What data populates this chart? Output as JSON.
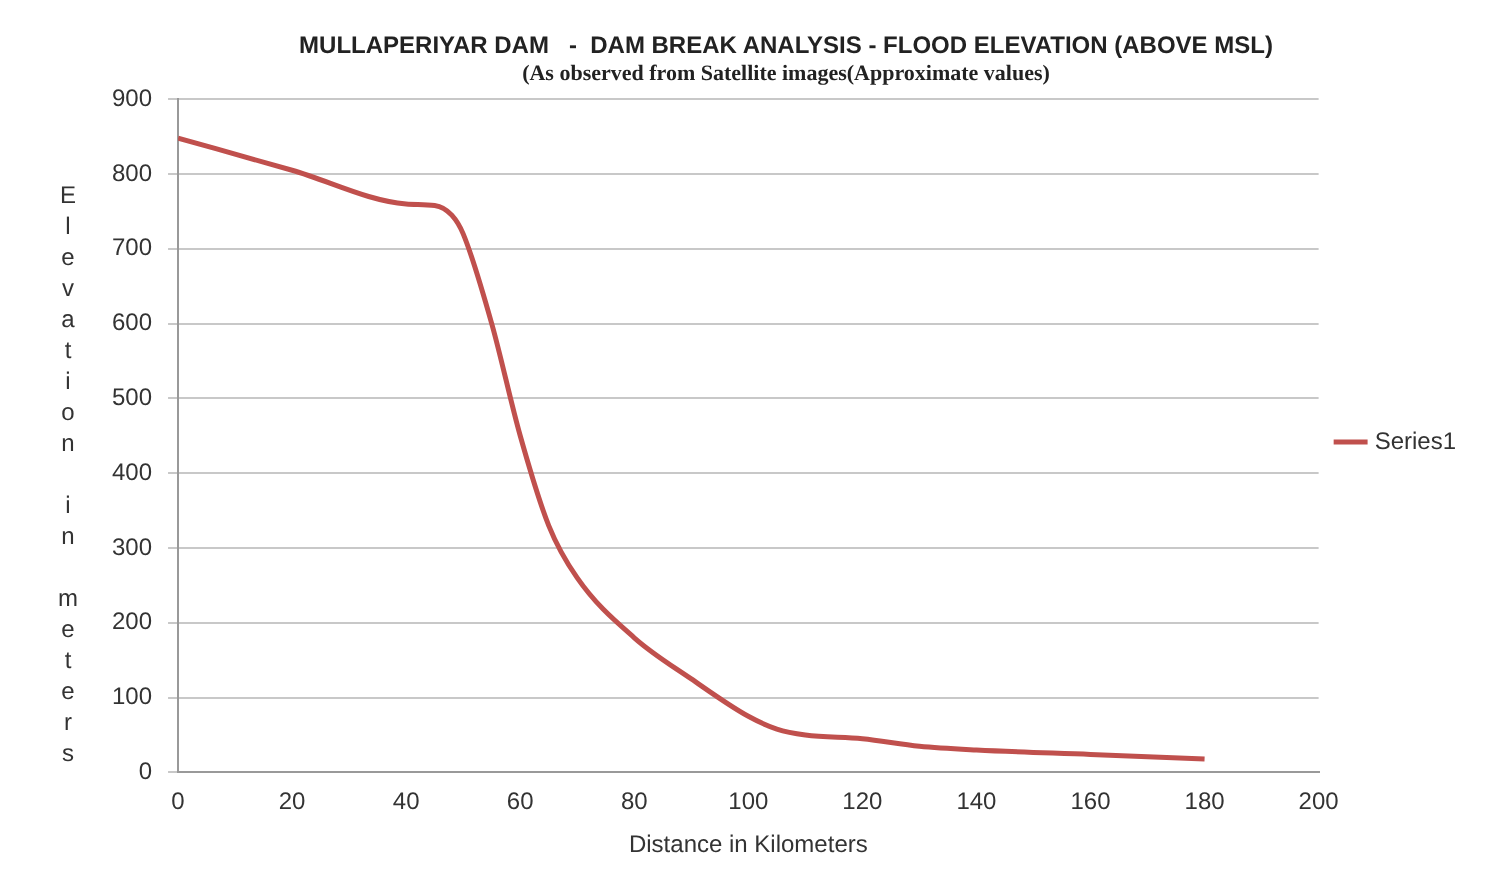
{
  "chart_data": {
    "type": "line",
    "title": "MULLAPERIYAR DAM   -  DAM BREAK ANALYSIS - FLOOD ELEVATION (ABOVE MSL)",
    "subtitle": "(As observed from Satellite images(Approximate values)",
    "xlabel": "Distance in Kilometers",
    "ylabel": "Elevation in meters",
    "x": [
      0,
      20,
      40,
      45,
      48,
      50,
      55,
      60,
      65,
      70,
      80,
      90,
      100,
      105,
      110,
      120,
      130,
      140,
      160,
      180
    ],
    "series": [
      {
        "name": "Series1",
        "color": "#c0504d",
        "values": [
          848,
          805,
          760,
          758,
          745,
          720,
          600,
          450,
          330,
          260,
          180,
          125,
          75,
          58,
          50,
          45,
          35,
          30,
          24,
          18
        ]
      }
    ],
    "xlim": [
      0,
      200
    ],
    "xticks": [
      0,
      20,
      40,
      60,
      80,
      100,
      120,
      140,
      160,
      180,
      200
    ],
    "ylim": [
      0,
      900
    ],
    "yticks": [
      0,
      100,
      200,
      300,
      400,
      500,
      600,
      700,
      800,
      900
    ],
    "grid": "y",
    "legend": "right",
    "marker": "none",
    "line_style": "solid"
  }
}
